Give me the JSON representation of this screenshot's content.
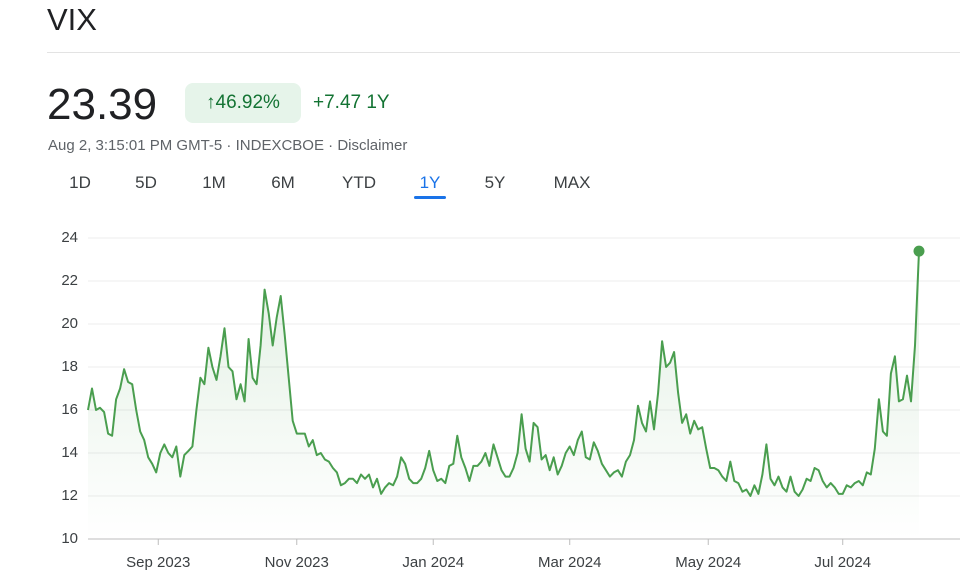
{
  "header": {
    "title": "VIX",
    "price": "23.39",
    "change_percent": "46.92%",
    "change": "+7.47",
    "period": "1Y",
    "timestamp": "Aug 2, 3:15:01 PM GMT-5",
    "exchange": "INDEXCBOE",
    "disclaimer": "Disclaimer"
  },
  "tabs": [
    "1D",
    "5D",
    "1M",
    "6M",
    "YTD",
    "1Y",
    "5Y",
    "MAX"
  ],
  "selected_tab": 5,
  "chart_data": {
    "type": "line",
    "color": "#4a9e4f",
    "grid": true,
    "values": [
      16.0,
      17.0,
      16.0,
      16.1,
      15.9,
      14.9,
      14.8,
      16.5,
      17.0,
      17.9,
      17.3,
      17.2,
      16.0,
      15.0,
      14.6,
      13.8,
      13.5,
      13.1,
      14.0,
      14.4,
      14.0,
      13.8,
      14.3,
      12.9,
      13.9,
      14.1,
      14.3,
      16.0,
      17.5,
      17.2,
      18.9,
      18.0,
      17.4,
      18.5,
      19.8,
      18.0,
      17.8,
      16.5,
      17.2,
      16.4,
      19.3,
      17.5,
      17.2,
      19.0,
      21.6,
      20.5,
      19.0,
      20.3,
      21.3,
      19.5,
      17.5,
      15.5,
      14.9,
      14.9,
      14.9,
      14.3,
      14.6,
      13.9,
      14.0,
      13.7,
      13.6,
      13.3,
      13.1,
      12.5,
      12.6,
      12.8,
      12.8,
      12.6,
      13.0,
      12.8,
      13.0,
      12.4,
      12.8,
      12.1,
      12.4,
      12.6,
      12.5,
      12.9,
      13.8,
      13.5,
      12.8,
      12.6,
      12.6,
      12.8,
      13.3,
      14.1,
      13.2,
      12.7,
      12.8,
      12.6,
      13.4,
      13.5,
      14.8,
      13.8,
      13.3,
      12.7,
      13.4,
      13.4,
      13.6,
      14.0,
      13.4,
      14.4,
      13.8,
      13.2,
      12.9,
      12.9,
      13.3,
      14.0,
      15.8,
      14.2,
      13.6,
      15.4,
      15.2,
      13.7,
      13.9,
      13.2,
      13.8,
      13.0,
      13.4,
      14.0,
      14.3,
      13.9,
      14.6,
      15.0,
      13.8,
      13.7,
      14.5,
      14.1,
      13.5,
      13.2,
      12.9,
      13.1,
      13.2,
      12.9,
      13.6,
      13.9,
      14.6,
      16.2,
      15.4,
      15.0,
      16.4,
      15.1,
      16.8,
      19.2,
      18.0,
      18.2,
      18.7,
      16.8,
      15.4,
      15.8,
      14.9,
      15.5,
      15.1,
      15.2,
      14.2,
      13.3,
      13.3,
      13.2,
      12.9,
      12.7,
      13.6,
      12.7,
      12.6,
      12.2,
      12.3,
      12.0,
      12.5,
      12.1,
      13.0,
      14.4,
      12.8,
      12.5,
      12.9,
      12.4,
      12.2,
      12.9,
      12.2,
      12.0,
      12.3,
      12.8,
      12.7,
      13.3,
      13.2,
      12.7,
      12.4,
      12.6,
      12.4,
      12.1,
      12.1,
      12.5,
      12.4,
      12.6,
      12.7,
      12.5,
      13.1,
      13.0,
      14.2,
      16.5,
      15.0,
      14.8,
      17.7,
      18.5,
      16.4,
      16.5,
      17.6,
      16.4,
      19.0,
      23.39
    ],
    "xlim": [
      0,
      207
    ],
    "xticks": [
      {
        "value": 17.5,
        "label": "Sep 2023"
      },
      {
        "value": 52,
        "label": "Nov 2023"
      },
      {
        "value": 86,
        "label": "Jan 2024"
      },
      {
        "value": 120,
        "label": "Mar 2024"
      },
      {
        "value": 154.5,
        "label": "May 2024"
      },
      {
        "value": 188,
        "label": "Jul 2024"
      }
    ],
    "ylim": [
      10,
      24
    ],
    "yticks": [
      10,
      12,
      14,
      16,
      18,
      20,
      22,
      24
    ]
  }
}
